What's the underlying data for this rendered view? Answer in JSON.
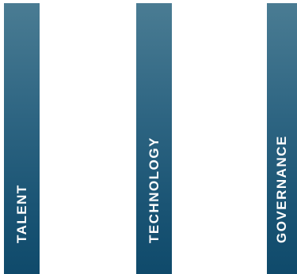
{
  "pillars": [
    {
      "label": "TALENT"
    },
    {
      "label": "TECHNOLOGY"
    },
    {
      "label": "GOVERNANCE"
    }
  ],
  "colors": {
    "pillar_top": "#4a7c93",
    "pillar_bottom": "#0f4a6b",
    "label_text": "#ffffff",
    "background": "#ffffff"
  }
}
